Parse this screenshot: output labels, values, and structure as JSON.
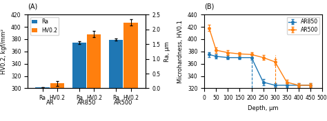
{
  "chart_data": [
    {
      "type": "bar",
      "title": "(A)",
      "categories": [
        "AR",
        "AR850",
        "AR500"
      ],
      "series": [
        {
          "name": "Ra",
          "values": [
            0.04,
            1.55,
            1.65
          ],
          "errors": [
            0.005,
            0.05,
            0.04
          ],
          "axis": "y2"
        },
        {
          "name": "HV0.2",
          "values": [
            308,
            388,
            407
          ],
          "errors": [
            4,
            5,
            5
          ]
        }
      ],
      "ylabel": "HV0.2, kgf/mm²",
      "y2label": "Ra, μm",
      "ylim": [
        300,
        420
      ],
      "yticks": [
        300,
        320,
        340,
        360,
        380,
        400,
        420
      ],
      "y2lim": [
        0.0,
        2.5
      ],
      "y2ticks": [
        0.0,
        0.5,
        1.0,
        1.5,
        2.0,
        2.5
      ],
      "legend": "upper left"
    },
    {
      "type": "line",
      "title": "(B)",
      "x": [
        20,
        50,
        100,
        150,
        200,
        250,
        300,
        350,
        400,
        450
      ],
      "xlabel": "Depth, μm",
      "ylabel": "Microhardness, HV0.1",
      "xlim": [
        0,
        500
      ],
      "xticks": [
        0,
        50,
        100,
        150,
        200,
        250,
        300,
        350,
        400,
        450,
        500
      ],
      "ylim": [
        320,
        440
      ],
      "yticks": [
        320,
        340,
        360,
        380,
        400,
        420,
        440
      ],
      "series": [
        {
          "name": "AR850",
          "values": [
            375,
            372,
            370,
            370,
            370,
            330,
            325,
            325,
            325,
            325
          ],
          "errors": [
            4,
            3,
            3,
            3,
            4,
            5,
            3,
            3,
            3,
            3
          ],
          "marker": "o",
          "line_style": "solid"
        },
        {
          "name": "AR500",
          "values": [
            418,
            382,
            378,
            376,
            375,
            370,
            363,
            330,
            325,
            325
          ],
          "errors": [
            5,
            4,
            4,
            3,
            4,
            4,
            4,
            4,
            3,
            3
          ],
          "marker": "o",
          "line_style": "solid"
        }
      ],
      "vlines": [
        {
          "x": 200,
          "y": [
            320,
            374
          ],
          "series": "AR850",
          "line_style": "dashed"
        },
        {
          "x": 300,
          "y": [
            320,
            374
          ],
          "series": "AR500",
          "line_style": "dashed"
        }
      ],
      "legend": "upper right"
    }
  ]
}
